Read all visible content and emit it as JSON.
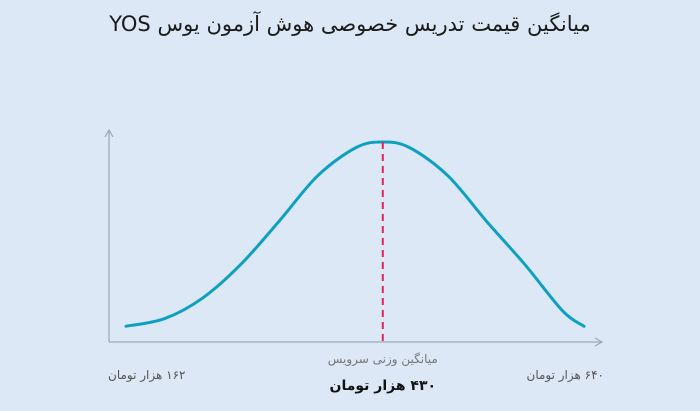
{
  "chart_data": {
    "type": "area",
    "title": "میانگین قیمت تدریس خصوصی هوش آزمون یوس YOS",
    "x_unit": "هزار تومان",
    "x_range": [
      162,
      640
    ],
    "curve": {
      "x": [
        162,
        202,
        242,
        282,
        322,
        362,
        402,
        430,
        458,
        498,
        538,
        578,
        618,
        640
      ],
      "relative_density": [
        0.02,
        0.06,
        0.17,
        0.35,
        0.58,
        0.82,
        0.97,
        1.0,
        0.97,
        0.82,
        0.58,
        0.35,
        0.1,
        0.02
      ]
    },
    "mean": {
      "value": 430,
      "caption": "میانگین وزنی سرویس",
      "label": "۴۳۰ هزار تومان"
    },
    "tick_labels": {
      "min": "۱۶۲ هزار تومان",
      "max": "۶۴۰ هزار تومان"
    },
    "colors": {
      "curve": "#0fa0bf",
      "mean_line": "#e0245e",
      "axis": "#9aa8b8"
    }
  }
}
